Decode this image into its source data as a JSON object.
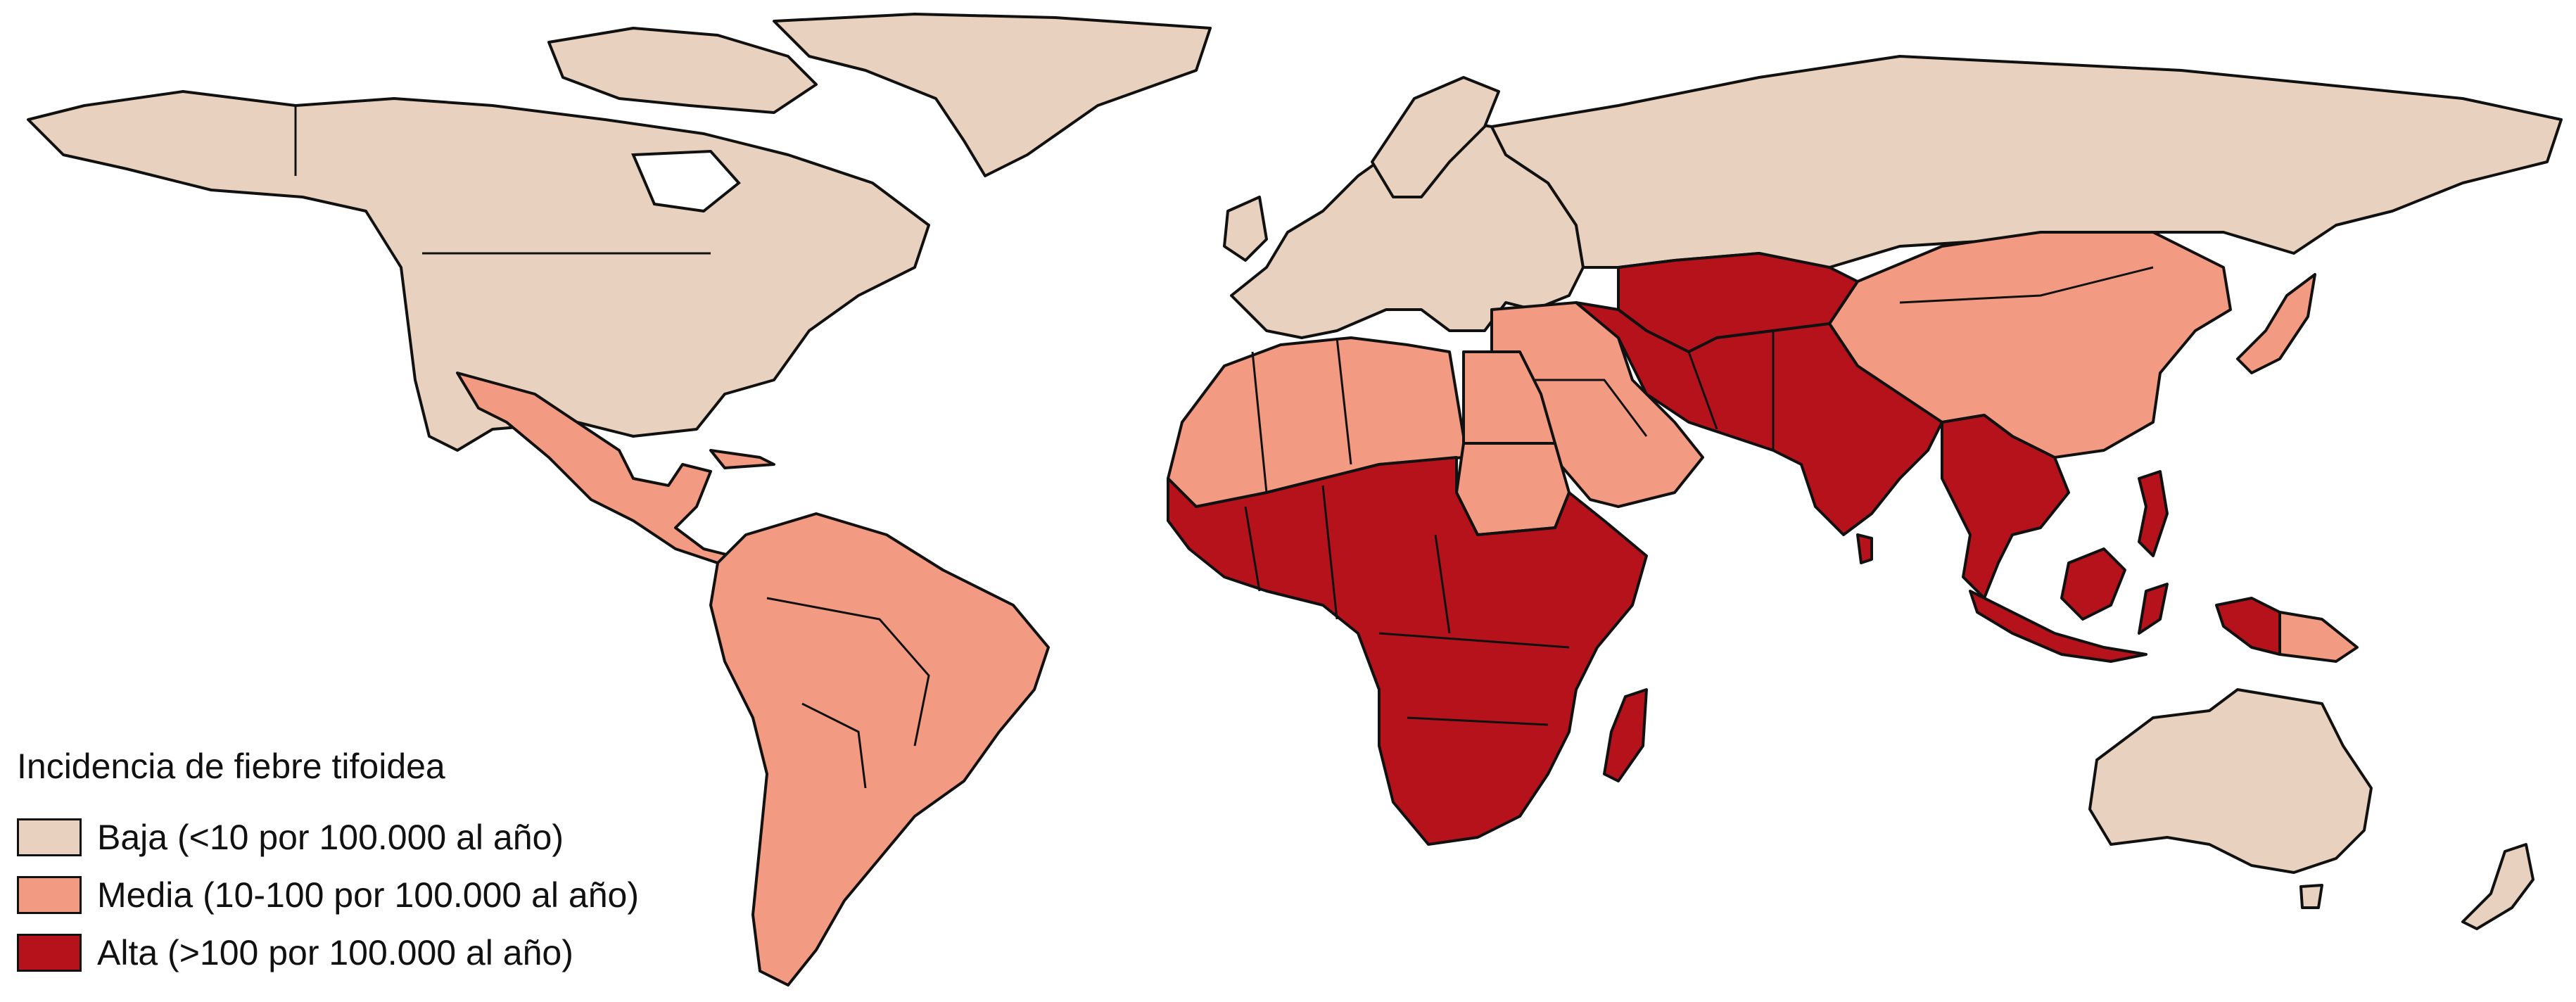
{
  "legend": {
    "title": "Incidencia de fiebre tifoidea",
    "items": [
      {
        "key": "baja",
        "label": "Baja (<10 por 100.000 al año)",
        "color": "#e8d2bf"
      },
      {
        "key": "media",
        "label": "Media (10-100 por 100.000 al año)",
        "color": "#f39b82"
      },
      {
        "key": "alta",
        "label": "Alta (>100 por 100.000 al año)",
        "color": "#b5121b"
      }
    ]
  },
  "regions": {
    "north-america": "baja",
    "greenland": "baja",
    "europe": "baja",
    "russia": "baja",
    "australia": "baja",
    "new-zealand": "baja",
    "japan": "media",
    "mexico-central-america": "media",
    "south-america": "media",
    "north-africa": "media",
    "egypt": "media",
    "sudan": "media",
    "middle-east": "media",
    "china": "media",
    "papua-new-guinea": "media",
    "sub-saharan-africa": "alta",
    "madagascar": "alta",
    "central-asia": "alta",
    "south-asia": "alta",
    "southeast-asia": "alta",
    "indonesia": "alta"
  }
}
